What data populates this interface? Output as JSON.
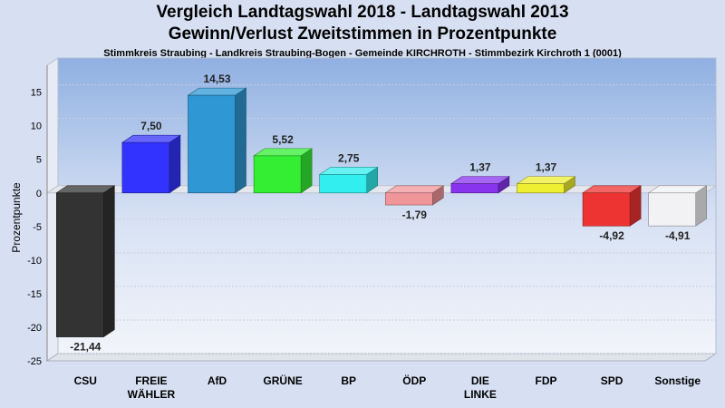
{
  "chart_data": {
    "type": "bar",
    "title": "Vergleich Landtagswahl 2018 - Landtagswahl 2013",
    "subtitle": "Gewinn/Verlust Zweitstimmen in Prozentpunkte",
    "caption": "Stimmkreis Straubing - Landkreis Straubing-Bogen - Gemeinde KIRCHROTH - Stimmbezirk Kirchroth 1 (0001)",
    "ylabel": "Prozentpunkte",
    "ylim": [
      -25,
      19
    ],
    "yticks": [
      15,
      10,
      5,
      0,
      -5,
      -10,
      -15,
      -20,
      -25
    ],
    "grid": true,
    "categories": [
      [
        "CSU"
      ],
      [
        "FREIE",
        "WÄHLER"
      ],
      [
        "AfD"
      ],
      [
        "GRÜNE"
      ],
      [
        "BP"
      ],
      [
        "ÖDP"
      ],
      [
        "DIE",
        "LINKE"
      ],
      [
        "FDP"
      ],
      [
        "SPD"
      ],
      [
        "Sonstige"
      ]
    ],
    "values": [
      -21.44,
      7.5,
      14.53,
      5.52,
      2.75,
      -1.79,
      1.37,
      1.37,
      -4.92,
      -4.91
    ],
    "labels": [
      "-21,44",
      "7,50",
      "14,53",
      "5,52",
      "2,75",
      "-1,79",
      "1,37",
      "1,37",
      "-4,92",
      "-4,91"
    ],
    "colors": [
      "#333333",
      "#3333ff",
      "#2e97d4",
      "#33ee33",
      "#33eeee",
      "#f0959a",
      "#8833ee",
      "#eeee33",
      "#ee3333",
      "#f2f2f5"
    ]
  }
}
